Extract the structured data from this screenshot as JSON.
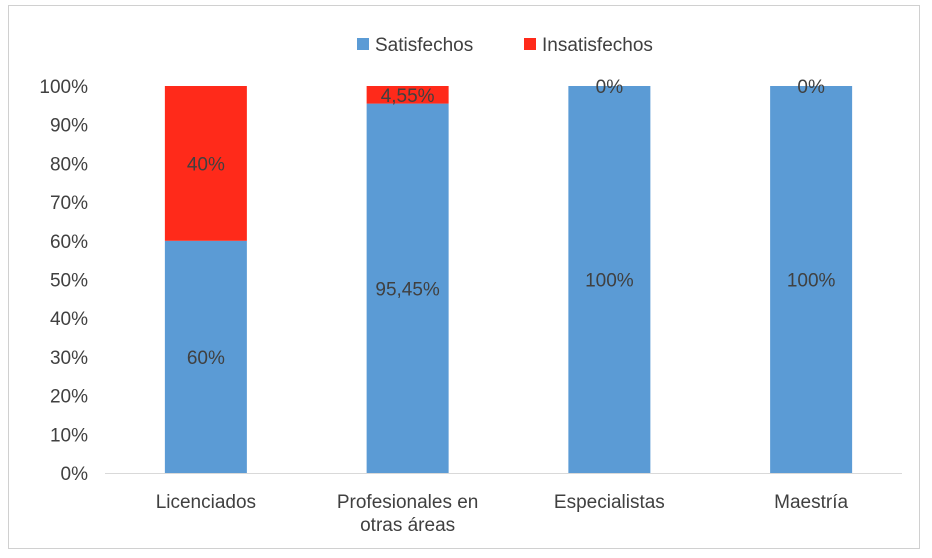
{
  "chart_data": {
    "type": "bar",
    "stacked": true,
    "categories": [
      [
        "Licenciados"
      ],
      [
        "Profesionales en",
        "otras áreas"
      ],
      [
        "Especialistas"
      ],
      [
        "Maestría"
      ]
    ],
    "series": [
      {
        "name": "Satisfechos",
        "color": "#5b9bd5",
        "values": [
          60,
          95.45,
          100,
          100
        ],
        "labels": [
          "60%",
          "95,45%",
          "100%",
          "100%"
        ]
      },
      {
        "name": "Insatisfechos",
        "color": "#ff2a1a",
        "values": [
          40,
          4.55,
          0,
          0
        ],
        "labels": [
          "40%",
          "4,55%",
          "0%",
          "0%"
        ]
      }
    ],
    "ylim": [
      0,
      100
    ],
    "yticks": [
      "0%",
      "10%",
      "20%",
      "30%",
      "40%",
      "50%",
      "60%",
      "70%",
      "80%",
      "90%",
      "100%"
    ],
    "legend_position": "top",
    "grid": false
  }
}
